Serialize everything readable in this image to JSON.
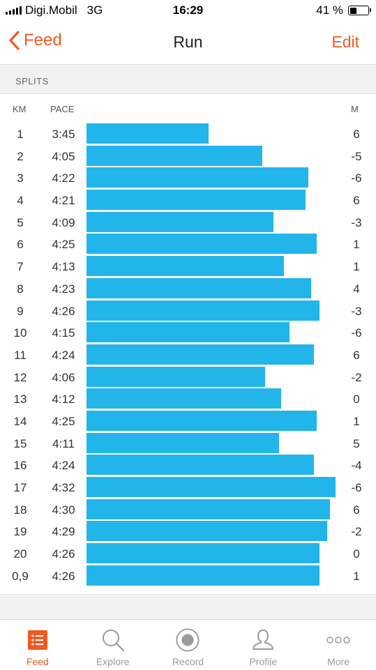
{
  "status": {
    "carrier": "Digi.Mobil",
    "network": "3G",
    "time": "16:29",
    "battery": "41 %",
    "battery_level": 0.41
  },
  "nav": {
    "back_label": "Feed",
    "title": "Run",
    "edit_label": "Edit"
  },
  "splits": {
    "section_title": "SPLITS",
    "col_km": "KM",
    "col_pace": "PACE",
    "col_elev": "M",
    "bar_color": "#22b5ea",
    "rows": [
      {
        "km": "1",
        "pace": "3:45",
        "elev": "6"
      },
      {
        "km": "2",
        "pace": "4:05",
        "elev": "-5"
      },
      {
        "km": "3",
        "pace": "4:22",
        "elev": "-6"
      },
      {
        "km": "4",
        "pace": "4:21",
        "elev": "6"
      },
      {
        "km": "5",
        "pace": "4:09",
        "elev": "-3"
      },
      {
        "km": "6",
        "pace": "4:25",
        "elev": "1"
      },
      {
        "km": "7",
        "pace": "4:13",
        "elev": "1"
      },
      {
        "km": "8",
        "pace": "4:23",
        "elev": "4"
      },
      {
        "km": "9",
        "pace": "4:26",
        "elev": "-3"
      },
      {
        "km": "10",
        "pace": "4:15",
        "elev": "-6"
      },
      {
        "km": "11",
        "pace": "4:24",
        "elev": "6"
      },
      {
        "km": "12",
        "pace": "4:06",
        "elev": "-2"
      },
      {
        "km": "13",
        "pace": "4:12",
        "elev": "0"
      },
      {
        "km": "14",
        "pace": "4:25",
        "elev": "1"
      },
      {
        "km": "15",
        "pace": "4:11",
        "elev": "5"
      },
      {
        "km": "16",
        "pace": "4:24",
        "elev": "-4"
      },
      {
        "km": "17",
        "pace": "4:32",
        "elev": "-6"
      },
      {
        "km": "18",
        "pace": "4:30",
        "elev": "6"
      },
      {
        "km": "19",
        "pace": "4:29",
        "elev": "-2"
      },
      {
        "km": "20",
        "pace": "4:26",
        "elev": "0"
      },
      {
        "km": "0,9",
        "pace": "4:26",
        "elev": "1"
      }
    ]
  },
  "tabs": [
    {
      "label": "Feed",
      "icon": "feed-icon",
      "active": true
    },
    {
      "label": "Explore",
      "icon": "search-icon",
      "active": false
    },
    {
      "label": "Record",
      "icon": "record-icon",
      "active": false
    },
    {
      "label": "Profile",
      "icon": "profile-icon",
      "active": false
    },
    {
      "label": "More",
      "icon": "more-icon",
      "active": false
    }
  ],
  "colors": {
    "accent": "#f05a1e",
    "inactive": "#9a9a9a"
  }
}
